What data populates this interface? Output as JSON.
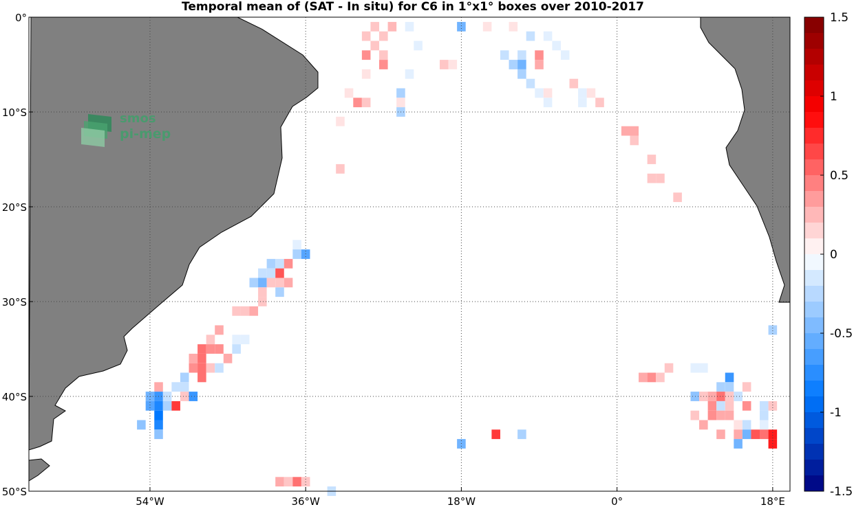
{
  "chart_data": {
    "type": "heatmap",
    "title": "Temporal mean of (SAT - In situ) for C6 in 1°x1° boxes over 2010-2017",
    "xlim": [
      -68,
      20
    ],
    "ylim": [
      -50,
      0
    ],
    "x_ticks": [
      {
        "value": -54,
        "label": "54°W"
      },
      {
        "value": -36,
        "label": "36°W"
      },
      {
        "value": -18,
        "label": "18°W"
      },
      {
        "value": 0,
        "label": "0°"
      },
      {
        "value": 18,
        "label": "18°E"
      }
    ],
    "y_ticks": [
      {
        "value": 0,
        "label": "0°"
      },
      {
        "value": -10,
        "label": "10°S"
      },
      {
        "value": -20,
        "label": "20°S"
      },
      {
        "value": -30,
        "label": "30°S"
      },
      {
        "value": -40,
        "label": "40°S"
      },
      {
        "value": -50,
        "label": "50°S"
      }
    ],
    "grid": true,
    "colorbar": {
      "range": [
        -1.5,
        1.5
      ],
      "levels": 30,
      "ticks": [
        {
          "value": 1.5,
          "label": "1.5"
        },
        {
          "value": 1,
          "label": "1"
        },
        {
          "value": 0.5,
          "label": "0.5"
        },
        {
          "value": 0,
          "label": "0"
        },
        {
          "value": -0.5,
          "label": "-0.5"
        },
        {
          "value": -1,
          "label": "-1"
        },
        {
          "value": -1.5,
          "label": "-1.5"
        }
      ],
      "colormap": "blue-white-red"
    },
    "cells": [
      {
        "lon": -28,
        "lat": -1,
        "v": 0.2
      },
      {
        "lon": -26,
        "lat": -1,
        "v": 0.25
      },
      {
        "lon": -24,
        "lat": -1,
        "v": -0.1
      },
      {
        "lon": -18,
        "lat": -1,
        "v": -0.5
      },
      {
        "lon": -15,
        "lat": -1,
        "v": 0.1
      },
      {
        "lon": -12,
        "lat": -1,
        "v": 0.1
      },
      {
        "lon": -29,
        "lat": -2,
        "v": 0.2
      },
      {
        "lon": -27,
        "lat": -2,
        "v": 0.2
      },
      {
        "lon": -10,
        "lat": -2,
        "v": -0.2
      },
      {
        "lon": -8,
        "lat": -2,
        "v": -0.1
      },
      {
        "lon": -28,
        "lat": -3,
        "v": 0.2
      },
      {
        "lon": -23,
        "lat": -3,
        "v": -0.1
      },
      {
        "lon": -7,
        "lat": -3,
        "v": -0.1
      },
      {
        "lon": -29,
        "lat": -4,
        "v": 0.4
      },
      {
        "lon": -27,
        "lat": -4,
        "v": 0.2
      },
      {
        "lon": -13,
        "lat": -4,
        "v": -0.2
      },
      {
        "lon": -11,
        "lat": -4,
        "v": -0.2
      },
      {
        "lon": -9,
        "lat": -4,
        "v": 0.4
      },
      {
        "lon": -6,
        "lat": -4,
        "v": -0.1
      },
      {
        "lon": -27,
        "lat": -5,
        "v": 0.4
      },
      {
        "lon": -20,
        "lat": -5,
        "v": 0.2
      },
      {
        "lon": -19,
        "lat": -5,
        "v": 0.1
      },
      {
        "lon": -12,
        "lat": -5,
        "v": -0.3
      },
      {
        "lon": -11,
        "lat": -5,
        "v": -0.5
      },
      {
        "lon": -9,
        "lat": -5,
        "v": 0.3
      },
      {
        "lon": -29,
        "lat": -6,
        "v": 0.1
      },
      {
        "lon": -24,
        "lat": -6,
        "v": -0.1
      },
      {
        "lon": -11,
        "lat": -6,
        "v": -0.3
      },
      {
        "lon": -10,
        "lat": -7,
        "v": -0.2
      },
      {
        "lon": -5,
        "lat": -7,
        "v": 0.2
      },
      {
        "lon": -31,
        "lat": -8,
        "v": 0.1
      },
      {
        "lon": -25,
        "lat": -8,
        "v": -0.3
      },
      {
        "lon": -9,
        "lat": -8,
        "v": -0.1
      },
      {
        "lon": -8,
        "lat": -8,
        "v": 0.1
      },
      {
        "lon": -4,
        "lat": -8,
        "v": -0.1
      },
      {
        "lon": -3,
        "lat": -8,
        "v": 0.1
      },
      {
        "lon": -30,
        "lat": -9,
        "v": 0.4
      },
      {
        "lon": -29,
        "lat": -9,
        "v": 0.2
      },
      {
        "lon": -25,
        "lat": -9,
        "v": 0.1
      },
      {
        "lon": -8,
        "lat": -9,
        "v": -0.1
      },
      {
        "lon": -4,
        "lat": -9,
        "v": -0.1
      },
      {
        "lon": -2,
        "lat": -9,
        "v": 0.2
      },
      {
        "lon": -25,
        "lat": -10,
        "v": -0.3
      },
      {
        "lon": -32,
        "lat": -11,
        "v": 0.1
      },
      {
        "lon": 1,
        "lat": -12,
        "v": 0.3
      },
      {
        "lon": 2,
        "lat": -12,
        "v": 0.3
      },
      {
        "lon": 2,
        "lat": -13,
        "v": 0.2
      },
      {
        "lon": 4,
        "lat": -15,
        "v": 0.2
      },
      {
        "lon": -32,
        "lat": -16,
        "v": 0.2
      },
      {
        "lon": 4,
        "lat": -17,
        "v": 0.2
      },
      {
        "lon": 5,
        "lat": -17,
        "v": 0.2
      },
      {
        "lon": 7,
        "lat": -19,
        "v": 0.2
      },
      {
        "lon": -37,
        "lat": -24,
        "v": -0.1
      },
      {
        "lon": -37,
        "lat": -25,
        "v": -0.3
      },
      {
        "lon": -36,
        "lat": -25,
        "v": -0.6
      },
      {
        "lon": -40,
        "lat": -26,
        "v": -0.3
      },
      {
        "lon": -39,
        "lat": -26,
        "v": -0.2
      },
      {
        "lon": -38,
        "lat": -26,
        "v": 0.4
      },
      {
        "lon": -41,
        "lat": -27,
        "v": -0.2
      },
      {
        "lon": -40,
        "lat": -27,
        "v": -0.2
      },
      {
        "lon": -39,
        "lat": -27,
        "v": 0.6
      },
      {
        "lon": -42,
        "lat": -28,
        "v": -0.3
      },
      {
        "lon": -41,
        "lat": -28,
        "v": -0.5
      },
      {
        "lon": -40,
        "lat": -28,
        "v": 0.2
      },
      {
        "lon": -39,
        "lat": -28,
        "v": 0.2
      },
      {
        "lon": -38,
        "lat": -28,
        "v": 0.3
      },
      {
        "lon": -41,
        "lat": -29,
        "v": 0.2
      },
      {
        "lon": -39,
        "lat": -29,
        "v": -0.3
      },
      {
        "lon": -41,
        "lat": -30,
        "v": 0.2
      },
      {
        "lon": -44,
        "lat": -31,
        "v": 0.2
      },
      {
        "lon": -43,
        "lat": -31,
        "v": 0.2
      },
      {
        "lon": -42,
        "lat": -31,
        "v": 0.3
      },
      {
        "lon": -46,
        "lat": -33,
        "v": 0.3
      },
      {
        "lon": -47,
        "lat": -34,
        "v": 0.2
      },
      {
        "lon": -44,
        "lat": -34,
        "v": -0.1
      },
      {
        "lon": -43,
        "lat": -34,
        "v": -0.1
      },
      {
        "lon": -48,
        "lat": -35,
        "v": 0.5
      },
      {
        "lon": -47,
        "lat": -35,
        "v": 0.4
      },
      {
        "lon": -46,
        "lat": -35,
        "v": 0.4
      },
      {
        "lon": -44,
        "lat": -35,
        "v": -0.2
      },
      {
        "lon": -49,
        "lat": -36,
        "v": 0.3
      },
      {
        "lon": -48,
        "lat": -36,
        "v": 0.5
      },
      {
        "lon": -45,
        "lat": -36,
        "v": 0.3
      },
      {
        "lon": -49,
        "lat": -37,
        "v": 0.4
      },
      {
        "lon": -48,
        "lat": -37,
        "v": 0.5
      },
      {
        "lon": -47,
        "lat": -37,
        "v": 0.2
      },
      {
        "lon": -46,
        "lat": -37,
        "v": -0.2
      },
      {
        "lon": -50,
        "lat": -38,
        "v": -0.3
      },
      {
        "lon": -48,
        "lat": -38,
        "v": 0.5
      },
      {
        "lon": -53,
        "lat": -39,
        "v": 0.3
      },
      {
        "lon": -51,
        "lat": -39,
        "v": -0.2
      },
      {
        "lon": -50,
        "lat": -39,
        "v": -0.2
      },
      {
        "lon": -54,
        "lat": -40,
        "v": -0.5
      },
      {
        "lon": -53,
        "lat": -40,
        "v": -0.7
      },
      {
        "lon": -52,
        "lat": -40,
        "v": -0.2
      },
      {
        "lon": -50,
        "lat": -40,
        "v": 0.2
      },
      {
        "lon": -49,
        "lat": -40,
        "v": -0.7
      },
      {
        "lon": -54,
        "lat": -41,
        "v": -0.6
      },
      {
        "lon": -53,
        "lat": -41,
        "v": -0.8
      },
      {
        "lon": -52,
        "lat": -41,
        "v": -0.3
      },
      {
        "lon": -51,
        "lat": -41,
        "v": 0.7
      },
      {
        "lon": -53,
        "lat": -42,
        "v": -0.9
      },
      {
        "lon": -55,
        "lat": -43,
        "v": -0.4
      },
      {
        "lon": -53,
        "lat": -43,
        "v": -0.8
      },
      {
        "lon": -53,
        "lat": -44,
        "v": -0.4
      },
      {
        "lon": 6,
        "lat": -37,
        "v": 0.2
      },
      {
        "lon": 9,
        "lat": -37,
        "v": -0.1
      },
      {
        "lon": 10,
        "lat": -37,
        "v": -0.1
      },
      {
        "lon": 3,
        "lat": -38,
        "v": 0.3
      },
      {
        "lon": 4,
        "lat": -38,
        "v": 0.4
      },
      {
        "lon": 5,
        "lat": -38,
        "v": 0.2
      },
      {
        "lon": 13,
        "lat": -38,
        "v": -0.7
      },
      {
        "lon": 12,
        "lat": -39,
        "v": -0.3
      },
      {
        "lon": 13,
        "lat": -39,
        "v": -0.3
      },
      {
        "lon": 15,
        "lat": -39,
        "v": 0.2
      },
      {
        "lon": 9,
        "lat": -40,
        "v": -0.4
      },
      {
        "lon": 10,
        "lat": -40,
        "v": 0.2
      },
      {
        "lon": 11,
        "lat": -40,
        "v": 0.3
      },
      {
        "lon": 12,
        "lat": -40,
        "v": 0.5
      },
      {
        "lon": 13,
        "lat": -40,
        "v": 0.2
      },
      {
        "lon": 14,
        "lat": -40,
        "v": -0.2
      },
      {
        "lon": 11,
        "lat": -41,
        "v": 0.4
      },
      {
        "lon": 12,
        "lat": -41,
        "v": -0.2
      },
      {
        "lon": 13,
        "lat": -41,
        "v": 0.2
      },
      {
        "lon": 15,
        "lat": -41,
        "v": 0.4
      },
      {
        "lon": 17,
        "lat": -41,
        "v": -0.2
      },
      {
        "lon": 18,
        "lat": -41,
        "v": 0.2
      },
      {
        "lon": 9,
        "lat": -42,
        "v": 0.2
      },
      {
        "lon": 11,
        "lat": -42,
        "v": 0.4
      },
      {
        "lon": 12,
        "lat": -42,
        "v": 0.3
      },
      {
        "lon": 13,
        "lat": -42,
        "v": 0.3
      },
      {
        "lon": 17,
        "lat": -42,
        "v": -0.2
      },
      {
        "lon": 10,
        "lat": -43,
        "v": 0.3
      },
      {
        "lon": 14,
        "lat": -43,
        "v": 0.1
      },
      {
        "lon": 15,
        "lat": -43,
        "v": -0.2
      },
      {
        "lon": 17,
        "lat": -43,
        "v": -0.1
      },
      {
        "lon": 12,
        "lat": -44,
        "v": 0.3
      },
      {
        "lon": 14,
        "lat": -44,
        "v": 0.3
      },
      {
        "lon": 15,
        "lat": -44,
        "v": -0.5
      },
      {
        "lon": 16,
        "lat": -44,
        "v": 0.6
      },
      {
        "lon": 17,
        "lat": -44,
        "v": 0.5
      },
      {
        "lon": 18,
        "lat": -44,
        "v": 0.8
      },
      {
        "lon": 14,
        "lat": -45,
        "v": -0.5
      },
      {
        "lon": 18,
        "lat": -45,
        "v": 0.8
      },
      {
        "lon": 18,
        "lat": -33,
        "v": -0.3
      },
      {
        "lon": -14,
        "lat": -44,
        "v": 0.7
      },
      {
        "lon": -11,
        "lat": -44,
        "v": -0.3
      },
      {
        "lon": -18,
        "lat": -45,
        "v": -0.5
      },
      {
        "lon": -39,
        "lat": -49,
        "v": 0.3
      },
      {
        "lon": -38,
        "lat": -49,
        "v": 0.2
      },
      {
        "lon": -37,
        "lat": -49,
        "v": 0.5
      },
      {
        "lon": -36,
        "lat": -49,
        "v": 0.2
      },
      {
        "lon": -33,
        "lat": -50,
        "v": -0.2
      }
    ]
  },
  "logo": {
    "line1": "smos",
    "line2": "pi-mep"
  },
  "colors": {
    "land": "#808080",
    "coast": "#000000",
    "grid": "#444444"
  }
}
